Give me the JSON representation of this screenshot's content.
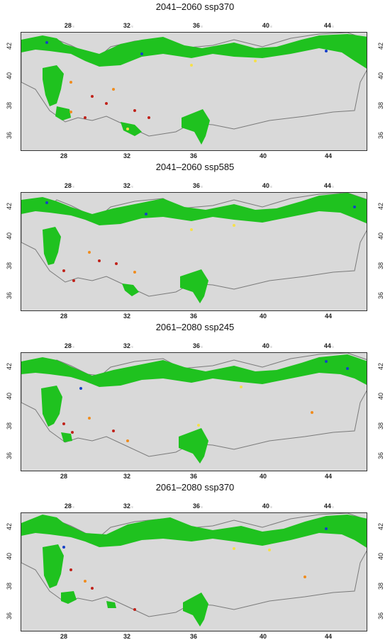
{
  "panels": [
    {
      "title": "2041–2060 ssp370"
    },
    {
      "title": "2041–2060 ssp585"
    },
    {
      "title": "2061–2080 ssp245"
    },
    {
      "title": "2061–2080 ssp370"
    }
  ],
  "axes": {
    "lon_ticks": [
      "28",
      "32",
      "36",
      "40",
      "44"
    ],
    "lat_ticks": [
      "42",
      "40",
      "38",
      "36"
    ],
    "lon_range": [
      25.5,
      45.2
    ],
    "lat_range": [
      35.8,
      42.6
    ]
  },
  "legend_colors": {
    "suitable_green": "#1fc21f",
    "background_unsuitable": "#d9d9d9",
    "loss_red": "#c0221a",
    "loss_orange": "#f08c1e",
    "gain_yellow": "#f6e04a",
    "points_blue": "#1440c8",
    "border_gray": "#7a7a7a"
  }
}
